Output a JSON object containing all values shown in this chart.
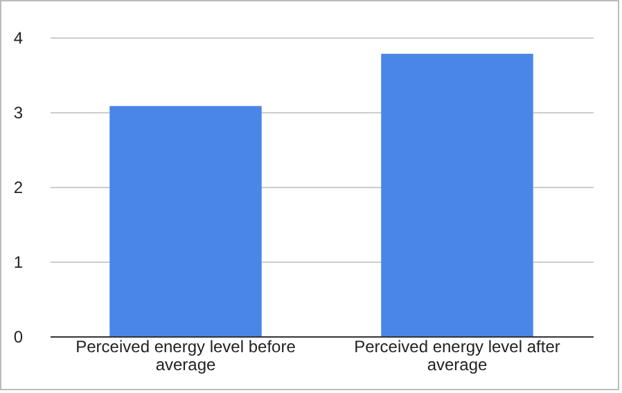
{
  "chart_data": {
    "type": "bar",
    "categories": [
      "Perceived energy level before average",
      "Perceived energy level after average"
    ],
    "values": [
      3.08,
      3.78
    ],
    "color": "#4a86e8",
    "ylim": [
      0,
      4
    ],
    "yticks": [
      0,
      1,
      2,
      3,
      4
    ],
    "grid": "y"
  }
}
